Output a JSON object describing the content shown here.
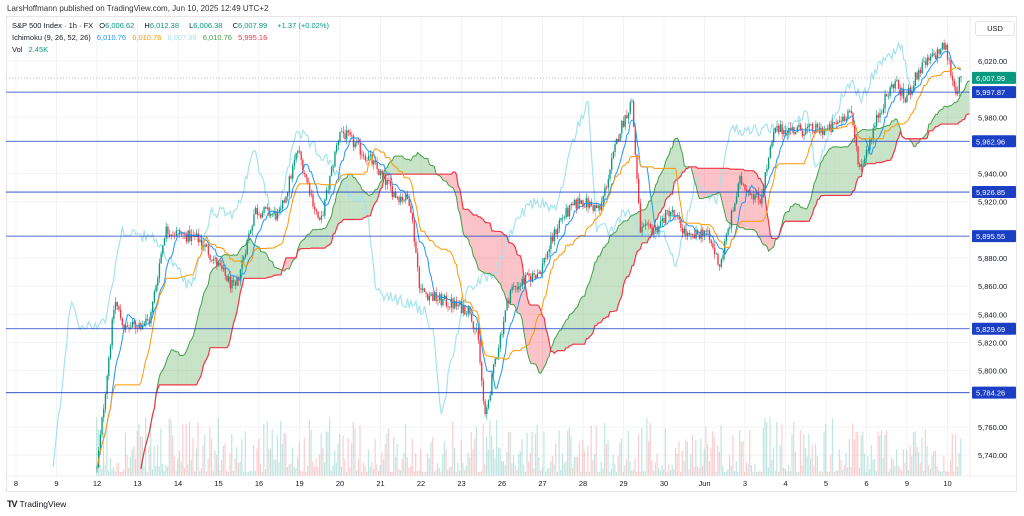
{
  "attribution": "LarsHoffmann published on TradingView.com, Jun 10, 2025 12:49 UTC+2",
  "legend": {
    "symbol": "S&P 500 Index · 1h · FX",
    "open_label": "O",
    "open": "6,006.62",
    "high_label": "H",
    "high": "6,012.38",
    "low_label": "L",
    "low": "6,006.38",
    "close_label": "C",
    "close": "6,007.99",
    "change": "+1.37 (+0.02%)",
    "ichimoku_label": "Ichimoku (9, 26, 52, 26)",
    "ichimoku_values": [
      "6,010.76",
      "6,010.76",
      "6,007.99",
      "6,010.76",
      "5,995.16"
    ],
    "vol_label": "Vol",
    "vol": "2.45K"
  },
  "currency": "USD",
  "brand": "TradingView",
  "colors": {
    "up": "#089981",
    "down": "#f23645",
    "tenkan": "#2196f3",
    "kijun": "#ff9800",
    "lagging": "#a6e3ee",
    "spanA": "#43a047",
    "spanB": "#f23645",
    "level": "#1a3fc4"
  },
  "chart_data": {
    "type": "candlestick",
    "title": "S&P 500 Index 1h with Ichimoku (9, 26, 52, 26)",
    "ylim": [
      5730,
      6040
    ],
    "y_ticks": [
      "6,020.00",
      "5,980.00",
      "5,940.00",
      "5,920.00",
      "5,880.00",
      "5,860.00",
      "5,840.00",
      "5,820.00",
      "5,800.00",
      "5,760.00",
      "5,740.00"
    ],
    "y_tick_values": [
      6020,
      5980,
      5940,
      5920,
      5880,
      5860,
      5840,
      5820,
      5800,
      5760,
      5740
    ],
    "x_ticks": [
      "8",
      "9",
      "12",
      "13",
      "14",
      "15",
      "16",
      "19",
      "20",
      "21",
      "22",
      "23",
      "26",
      "27",
      "28",
      "29",
      "30",
      "Jun",
      "3",
      "4",
      "5",
      "6",
      "9",
      "10"
    ],
    "current_price": {
      "value": 6007.99,
      "label": "6,007.99"
    },
    "levels": [
      {
        "value": 5997.87,
        "label": "5,997.87"
      },
      {
        "value": 5962.96,
        "label": "5,962.96"
      },
      {
        "value": 5926.85,
        "label": "5,926.85"
      },
      {
        "value": 5895.55,
        "label": "5,895.55"
      },
      {
        "value": 5829.69,
        "label": "5,829.69"
      },
      {
        "value": 5784.26,
        "label": "5,784.26"
      }
    ],
    "price_path_day_price": [
      [
        2.0,
        5730
      ],
      [
        2.44,
        5850
      ],
      [
        2.69,
        5829
      ],
      [
        3.31,
        5836
      ],
      [
        3.68,
        5900
      ],
      [
        4.54,
        5893
      ],
      [
        5.41,
        5857
      ],
      [
        5.9,
        5914
      ],
      [
        6.52,
        5910
      ],
      [
        6.96,
        5957
      ],
      [
        7.51,
        5903
      ],
      [
        8.0,
        5971
      ],
      [
        8.74,
        5950
      ],
      [
        9.36,
        5925
      ],
      [
        9.73,
        5921
      ],
      [
        9.98,
        5857
      ],
      [
        10.47,
        5850
      ],
      [
        11.21,
        5843
      ],
      [
        11.41,
        5822
      ],
      [
        11.58,
        5765
      ],
      [
        11.83,
        5807
      ],
      [
        12.2,
        5857
      ],
      [
        12.94,
        5871
      ],
      [
        13.43,
        5907
      ],
      [
        13.93,
        5921
      ],
      [
        14.42,
        5914
      ],
      [
        14.91,
        5971
      ],
      [
        15.21,
        5992
      ],
      [
        15.41,
        5900
      ],
      [
        15.78,
        5900
      ],
      [
        16.15,
        5914
      ],
      [
        16.64,
        5893
      ],
      [
        17.01,
        5900
      ],
      [
        17.38,
        5875
      ],
      [
        17.88,
        5935
      ],
      [
        18.37,
        5921
      ],
      [
        18.74,
        5971
      ],
      [
        19.36,
        5971
      ],
      [
        20.1,
        5971
      ],
      [
        20.59,
        5985
      ],
      [
        20.84,
        5943
      ],
      [
        21.33,
        5985
      ],
      [
        21.7,
        6006
      ],
      [
        21.95,
        5992
      ],
      [
        22.32,
        6014
      ],
      [
        22.94,
        6031
      ],
      [
        23.19,
        5999
      ],
      [
        23.36,
        6008
      ]
    ]
  }
}
